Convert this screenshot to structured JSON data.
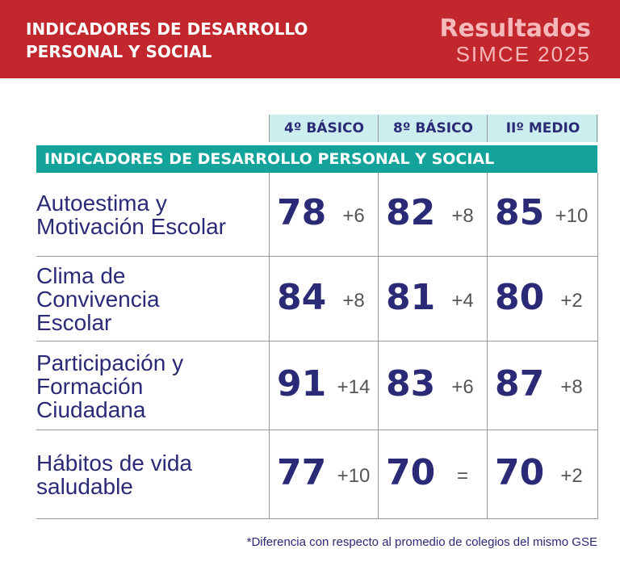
{
  "header": {
    "title_lines": [
      "INDICADORES DE DESARROLLO",
      "PERSONAL Y SOCIAL"
    ],
    "brand": "Resultados",
    "subtitle": "SIMCE 2025"
  },
  "table": {
    "columns": [
      "4º BÁSICO",
      "8º BÁSICO",
      "IIº MEDIO"
    ],
    "section": "INDICADORES DE DESARROLLO PERSONAL Y SOCIAL",
    "rows": [
      {
        "label_lines": [
          "Autoestima y",
          "Motivación Escolar"
        ],
        "cells": [
          {
            "value": 78,
            "diff": "+6"
          },
          {
            "value": 82,
            "diff": "+8"
          },
          {
            "value": 85,
            "diff": "+10"
          }
        ]
      },
      {
        "label_lines": [
          "Clima de",
          "Convivencia",
          "Escolar"
        ],
        "cells": [
          {
            "value": 84,
            "diff": "+8"
          },
          {
            "value": 81,
            "diff": "+4"
          },
          {
            "value": 80,
            "diff": "+2"
          }
        ]
      },
      {
        "label_lines": [
          "Participación y",
          "Formación",
          "Ciudadana"
        ],
        "cells": [
          {
            "value": 91,
            "diff": "+14"
          },
          {
            "value": 83,
            "diff": "+6"
          },
          {
            "value": 87,
            "diff": "+8"
          }
        ]
      },
      {
        "label_lines": [
          "Hábitos de vida",
          "saludable"
        ],
        "cells": [
          {
            "value": 77,
            "diff": "+10"
          },
          {
            "value": 70,
            "diff": "="
          },
          {
            "value": 70,
            "diff": "+2"
          }
        ]
      }
    ]
  },
  "footnote": "*Diferencia con respecto al promedio de colegios del mismo GSE"
}
